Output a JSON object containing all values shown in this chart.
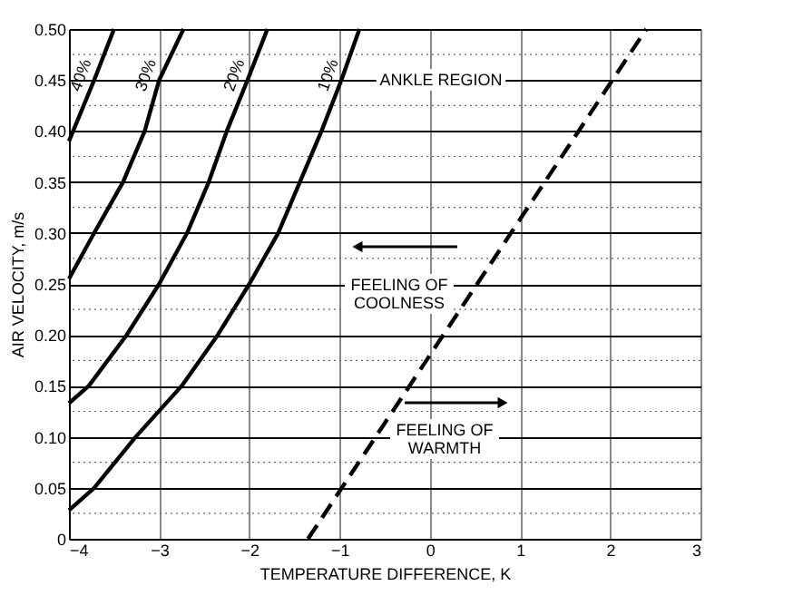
{
  "chart_data": {
    "type": "line",
    "xlabel": "TEMPERATURE DIFFERENCE, K",
    "ylabel": "AIR VELOCITY, m/s",
    "xlim": [
      -4,
      3
    ],
    "xticks": [
      {
        "value": -4,
        "label": "−4"
      },
      {
        "value": -3,
        "label": "−3"
      },
      {
        "value": -2,
        "label": "−2"
      },
      {
        "value": -1,
        "label": "−1"
      },
      0,
      1,
      2,
      3
    ],
    "ylim": [
      0,
      0.5
    ],
    "yticks": [
      0,
      {
        "value": 0.025,
        "label": null
      },
      0.05,
      {
        "value": 0.075,
        "label": null
      },
      {
        "value": 0.1,
        "label": "0.10"
      },
      {
        "value": 0.125,
        "label": null
      },
      0.15,
      {
        "value": 0.175,
        "label": null
      },
      {
        "value": 0.2,
        "label": "0.20"
      },
      {
        "value": 0.225,
        "label": null
      },
      0.25,
      {
        "value": 0.275,
        "label": null
      },
      {
        "value": 0.3,
        "label": "0.30"
      },
      {
        "value": 0.325,
        "label": null
      },
      0.35,
      {
        "value": 0.375,
        "label": null
      },
      {
        "value": 0.4,
        "label": "0.40"
      },
      {
        "value": 0.425,
        "label": null
      },
      0.45,
      {
        "value": 0.475,
        "label": null
      },
      {
        "value": 0.5,
        "label": "0.50"
      }
    ],
    "grid": true,
    "marker": "none",
    "series": [
      {
        "name": "40%",
        "color": "#000000",
        "x": [
          -4,
          -3.72,
          -3.5
        ],
        "values": [
          0.39,
          0.45,
          0.5
        ]
      },
      {
        "name": "30%",
        "color": "#000000",
        "x": [
          -4,
          -3.72,
          -3.4,
          -3.16,
          -3.0,
          -2.73
        ],
        "values": [
          0.255,
          0.3,
          0.35,
          0.4,
          0.45,
          0.5
        ]
      },
      {
        "name": "20%",
        "color": "#000000",
        "x": [
          -4,
          -3.78,
          -3.36,
          -3.0,
          -2.69,
          -2.45,
          -2.25,
          -2.02,
          -1.8
        ],
        "values": [
          0.133,
          0.15,
          0.2,
          0.25,
          0.3,
          0.35,
          0.4,
          0.45,
          0.5
        ]
      },
      {
        "name": "10%",
        "color": "#000000",
        "x": [
          -4,
          -3.72,
          -3.26,
          -2.75,
          -2.35,
          -2.0,
          -1.68,
          -1.44,
          -1.2,
          -0.98,
          -0.78
        ],
        "values": [
          0.028,
          0.05,
          0.1,
          0.15,
          0.2,
          0.25,
          0.3,
          0.35,
          0.4,
          0.45,
          0.5
        ]
      },
      {
        "color": "#000000",
        "line_style": "dashed",
        "x": [
          -1.35,
          2.4
        ],
        "values": [
          0,
          0.5
        ]
      }
    ],
    "annotations": [
      "ANKLE REGION",
      "FEELING OF\nCOOLNESS",
      "FEELING OF\nWARMTH"
    ]
  }
}
